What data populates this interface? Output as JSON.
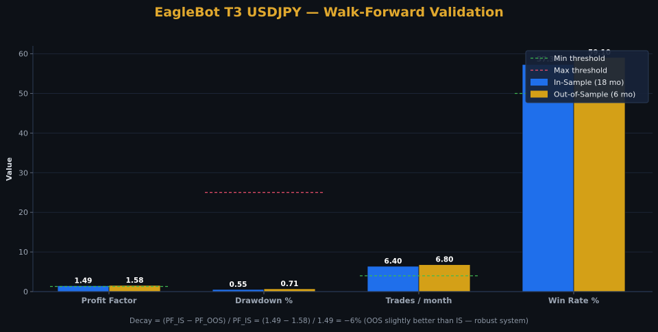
{
  "colors": {
    "background": "#0d1117",
    "in_sample": "#1f6feb",
    "out_of_sample": "#d4a017",
    "min_threshold": "#3fb950",
    "max_threshold": "#f0506e",
    "title": "#e0a82e"
  },
  "footer_note": "Decay = (PF_IS − PF_OOS) / PF_IS = (1.49 − 1.58) / 1.49 = −6% (OOS slightly better than IS — robust system)",
  "chart_data": {
    "type": "bar",
    "title": "EagleBot T3 USDJPY — Walk-Forward Validation",
    "xlabel": "",
    "ylabel": "Value",
    "ylim": [
      0,
      62
    ],
    "yticks": [
      "0",
      "10",
      "20",
      "30",
      "40",
      "50",
      "60"
    ],
    "categories": [
      "Profit Factor",
      "Drawdown %",
      "Trades / month",
      "Win Rate %"
    ],
    "series": [
      {
        "name": "In-Sample (18 mo)",
        "values": [
          1.49,
          0.55,
          6.4,
          57.3
        ],
        "labels": [
          "1.49",
          "0.55",
          "6.40",
          "57.30"
        ]
      },
      {
        "name": "Out-of-Sample (6 mo)",
        "values": [
          1.58,
          0.71,
          6.8,
          59.1
        ],
        "labels": [
          "1.58",
          "0.71",
          "6.80",
          "59.10"
        ]
      }
    ],
    "thresholds": {
      "min": {
        "name": "Min threshold",
        "values": [
          1.3,
          null,
          4,
          50
        ]
      },
      "max": {
        "name": "Max threshold",
        "values": [
          null,
          25,
          null,
          null
        ]
      }
    },
    "grid": true,
    "legend_position": "top-right"
  }
}
